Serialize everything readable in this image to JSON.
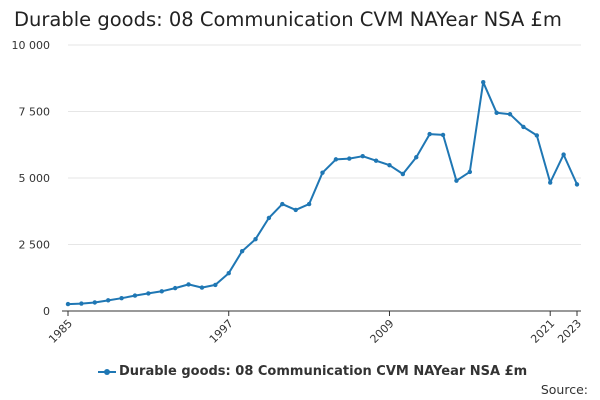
{
  "chart_data": {
    "type": "line",
    "title": "Durable goods: 08 Communication CVM NAYear NSA £m",
    "xlabel": "",
    "ylabel": "",
    "ylim": [
      0,
      10000
    ],
    "xlim": [
      1985,
      2023
    ],
    "y_ticks": [
      0,
      2500,
      5000,
      7500,
      10000
    ],
    "y_tick_labels": [
      "0",
      "2 500",
      "5 000",
      "7 500",
      "10 000"
    ],
    "x_ticks": [
      1985,
      1997,
      2009,
      2021,
      2023
    ],
    "x_tick_labels": [
      "1985",
      "1997",
      "2009",
      "2021",
      "2023"
    ],
    "grid": "horizontal",
    "legend_position": "bottom",
    "series": [
      {
        "name": "Durable goods: 08 Communication CVM NAYear NSA £m",
        "color": "#1f77b4",
        "x": [
          1985,
          1986,
          1987,
          1988,
          1989,
          1990,
          1991,
          1992,
          1993,
          1994,
          1995,
          1996,
          1997,
          1998,
          1999,
          2000,
          2001,
          2002,
          2003,
          2004,
          2005,
          2006,
          2007,
          2008,
          2009,
          2010,
          2011,
          2012,
          2013,
          2014,
          2015,
          2016,
          2017,
          2018,
          2019,
          2020,
          2021,
          2022,
          2023
        ],
        "values": [
          260,
          280,
          320,
          400,
          480,
          580,
          660,
          740,
          860,
          1000,
          880,
          980,
          1420,
          2250,
          2700,
          3500,
          4020,
          3800,
          4020,
          5200,
          5700,
          5730,
          5820,
          5650,
          5480,
          5150,
          5780,
          6650,
          6620,
          4900,
          5230,
          8600,
          7450,
          7400,
          6920,
          6600,
          4830,
          5880,
          4760
        ]
      }
    ]
  },
  "source_label": "Source:"
}
